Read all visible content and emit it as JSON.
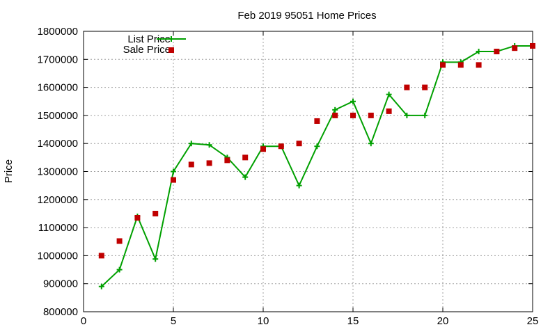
{
  "chart_data": {
    "type": "line",
    "title": "Feb 2019 95051 Home Prices",
    "xlabel": "",
    "ylabel": "Price",
    "xlim": [
      0,
      25
    ],
    "ylim": [
      800000,
      1800000
    ],
    "x_ticks": [
      0,
      5,
      10,
      15,
      20,
      25
    ],
    "y_ticks": [
      800000,
      900000,
      1000000,
      1100000,
      1200000,
      1300000,
      1400000,
      1500000,
      1600000,
      1700000,
      1800000
    ],
    "grid": true,
    "legend_position": "top-left",
    "series": [
      {
        "name": "List Price",
        "style": "line-with-plus-markers",
        "color": "#00a000",
        "x": [
          1,
          2,
          3,
          4,
          5,
          6,
          7,
          8,
          9,
          10,
          11,
          12,
          13,
          14,
          15,
          16,
          17,
          18,
          19,
          20,
          21,
          22,
          23,
          24,
          25
        ],
        "y": [
          890000,
          950000,
          1140000,
          988000,
          1300000,
          1400000,
          1395000,
          1350000,
          1280000,
          1390000,
          1390000,
          1250000,
          1390000,
          1520000,
          1550000,
          1400000,
          1575000,
          1500000,
          1500000,
          1690000,
          1690000,
          1728000,
          1728000,
          1748000,
          1748000
        ]
      },
      {
        "name": "Sale Price",
        "style": "square-markers",
        "color": "#c00000",
        "x": [
          1,
          2,
          3,
          4,
          5,
          6,
          7,
          8,
          9,
          10,
          11,
          12,
          13,
          14,
          15,
          16,
          17,
          18,
          19,
          20,
          21,
          22,
          23,
          24,
          25
        ],
        "y": [
          1000000,
          1052000,
          1135000,
          1150000,
          1270000,
          1325000,
          1330000,
          1340000,
          1350000,
          1380000,
          1390000,
          1400000,
          1480000,
          1500000,
          1500000,
          1500000,
          1515000,
          1600000,
          1600000,
          1680000,
          1680000,
          1680000,
          1728000,
          1740000,
          1748000
        ]
      }
    ]
  }
}
